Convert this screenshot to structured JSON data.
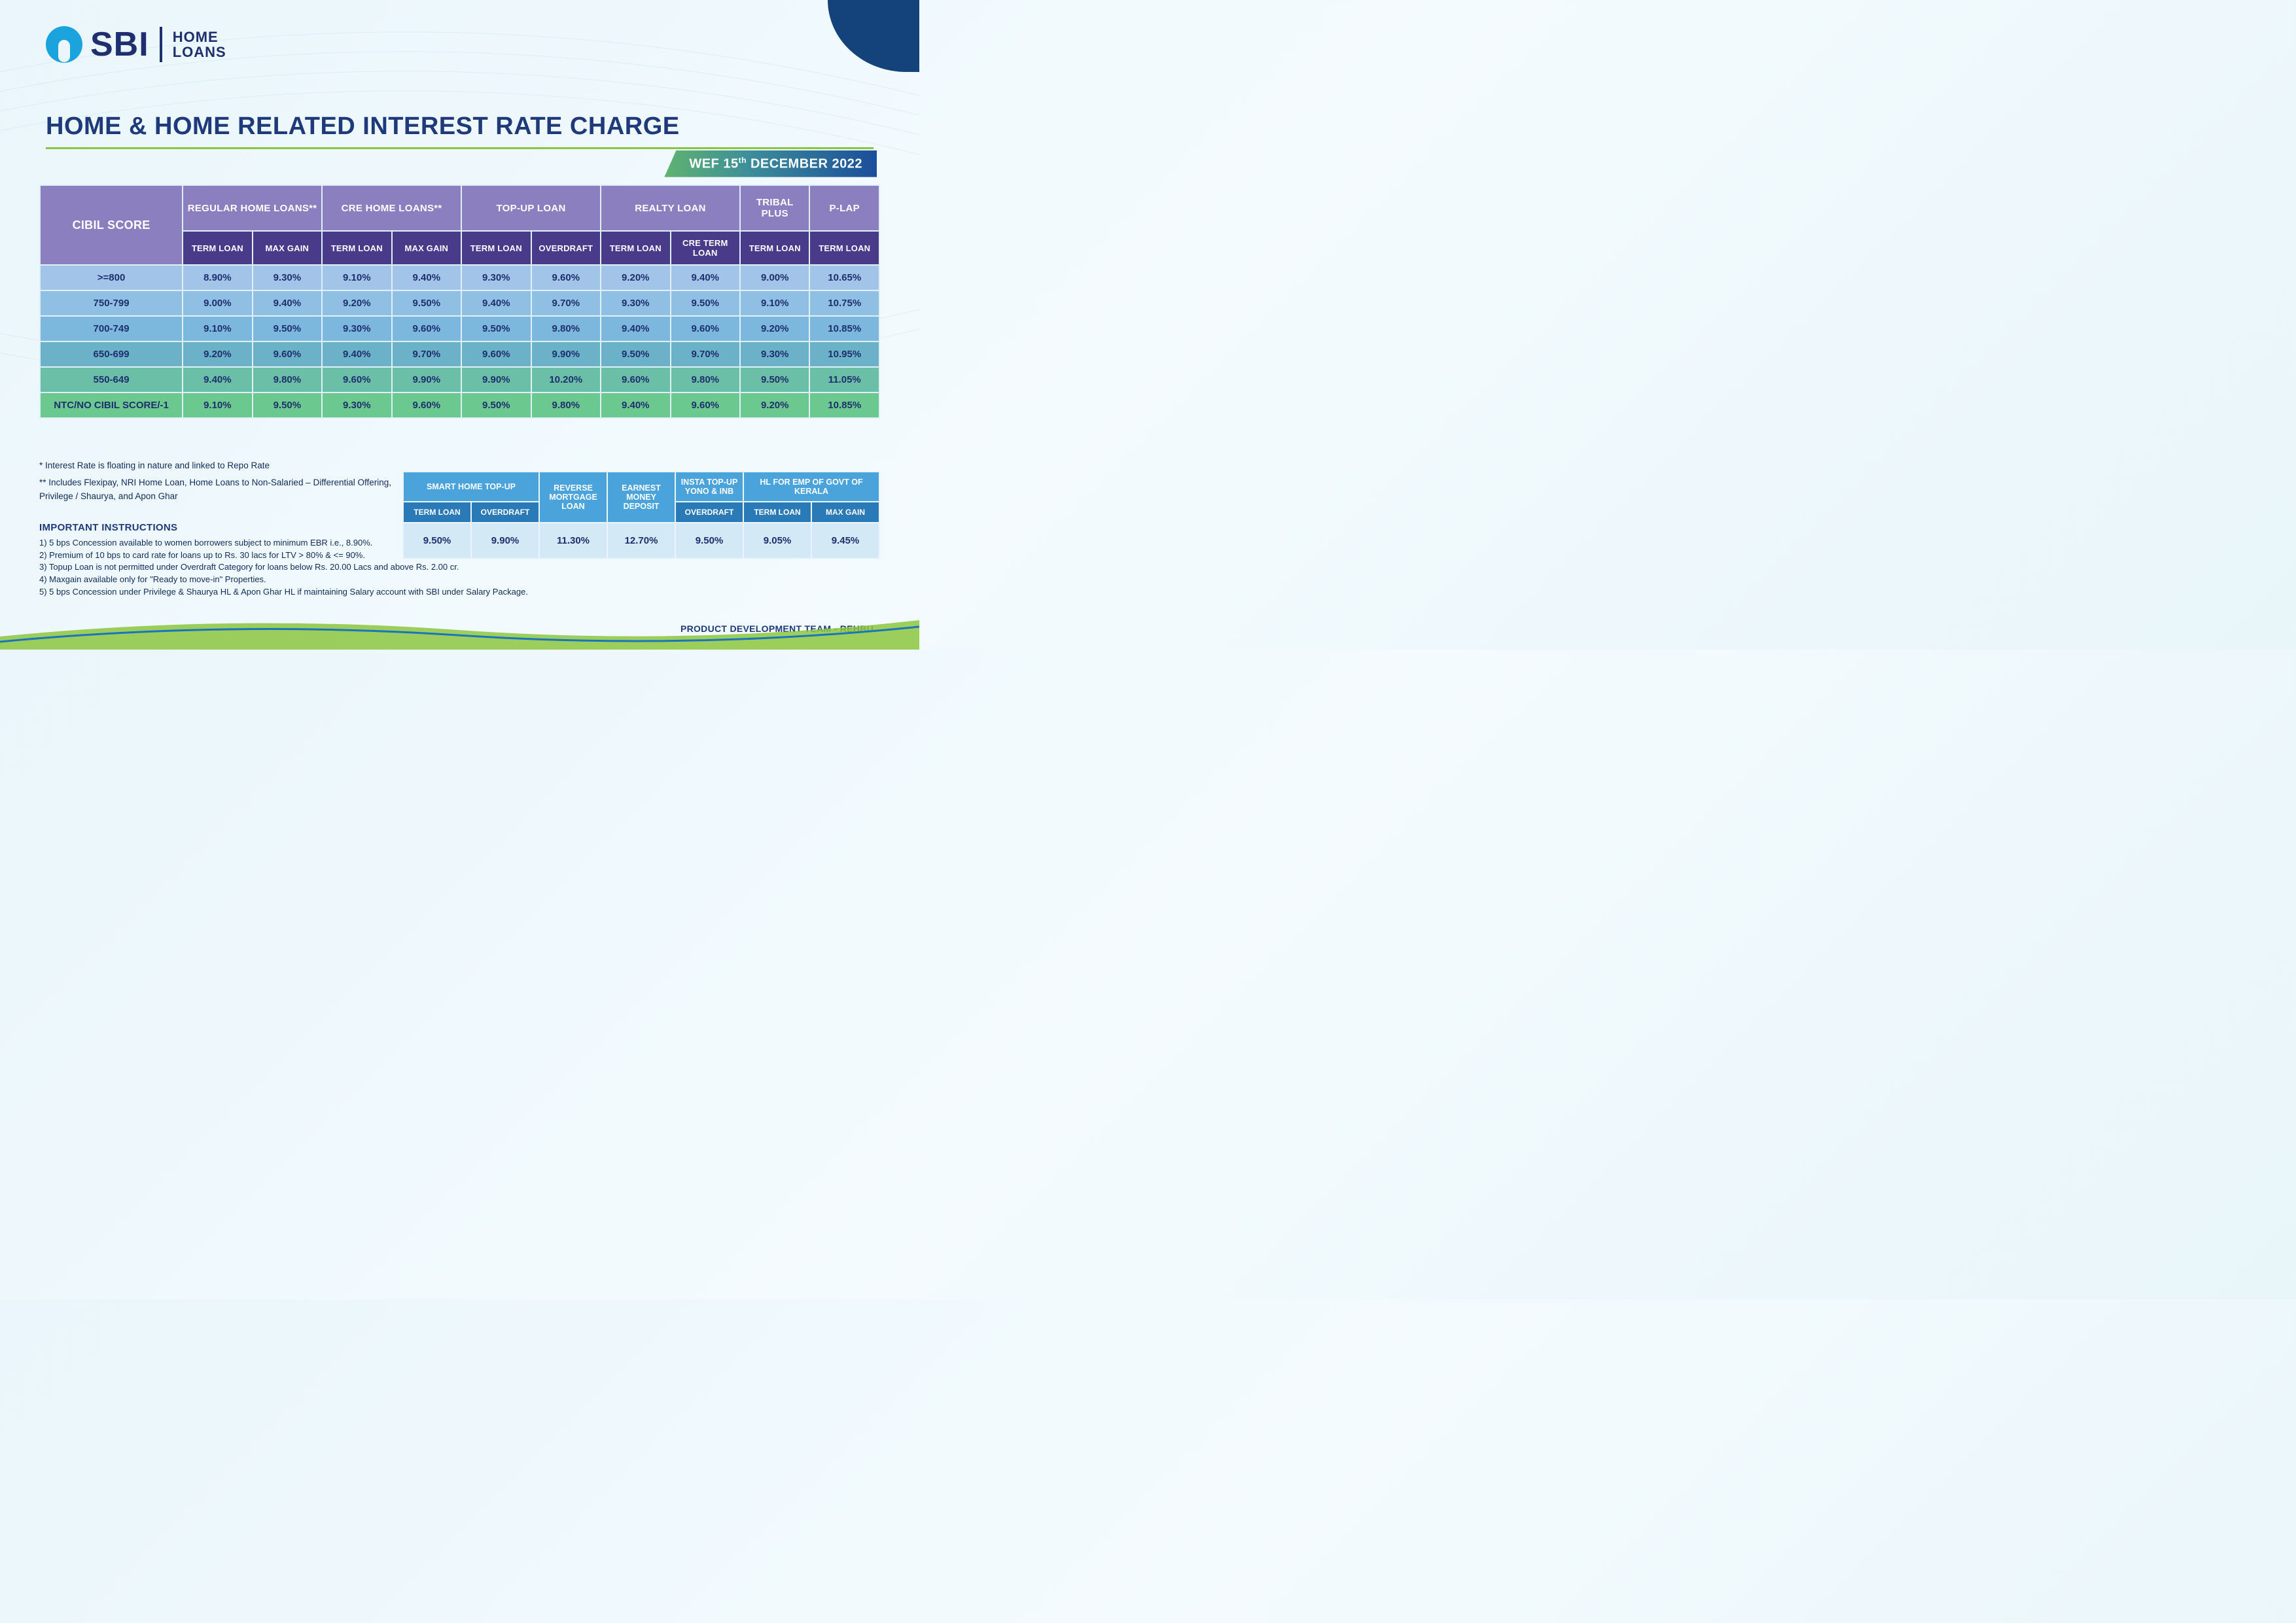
{
  "brand": {
    "name": "SBI",
    "sub1": "HOME",
    "sub2": "LOANS"
  },
  "title": "HOME & HOME RELATED INTEREST RATE CHARGE",
  "wef": {
    "prefix": "WEF 15",
    "suffix": "DECEMBER 2022",
    "ord": "th"
  },
  "colors": {
    "row_bands": [
      "#a2c4e8",
      "#8fbfe3",
      "#7cb8dd",
      "#6bb2c9",
      "#6bbfa6",
      "#6bc98f"
    ]
  },
  "main": {
    "score_header": "CIBIL SCORE",
    "groups": [
      {
        "label": "REGULAR HOME LOANS**",
        "subs": [
          "TERM LOAN",
          "MAX GAIN"
        ]
      },
      {
        "label": "CRE HOME LOANS**",
        "subs": [
          "TERM LOAN",
          "MAX GAIN"
        ]
      },
      {
        "label": "TOP-UP LOAN",
        "subs": [
          "TERM LOAN",
          "OVERDRAFT"
        ]
      },
      {
        "label": "REALTY LOAN",
        "subs": [
          "TERM LOAN",
          "CRE TERM LOAN"
        ]
      },
      {
        "label": "TRIBAL PLUS",
        "subs": [
          "TERM LOAN"
        ]
      },
      {
        "label": "P-LAP",
        "subs": [
          "TERM LOAN"
        ]
      }
    ],
    "rows": [
      {
        "score": ">=800",
        "v": [
          "8.90%",
          "9.30%",
          "9.10%",
          "9.40%",
          "9.30%",
          "9.60%",
          "9.20%",
          "9.40%",
          "9.00%",
          "10.65%"
        ]
      },
      {
        "score": "750-799",
        "v": [
          "9.00%",
          "9.40%",
          "9.20%",
          "9.50%",
          "9.40%",
          "9.70%",
          "9.30%",
          "9.50%",
          "9.10%",
          "10.75%"
        ]
      },
      {
        "score": "700-749",
        "v": [
          "9.10%",
          "9.50%",
          "9.30%",
          "9.60%",
          "9.50%",
          "9.80%",
          "9.40%",
          "9.60%",
          "9.20%",
          "10.85%"
        ]
      },
      {
        "score": "650-699",
        "v": [
          "9.20%",
          "9.60%",
          "9.40%",
          "9.70%",
          "9.60%",
          "9.90%",
          "9.50%",
          "9.70%",
          "9.30%",
          "10.95%"
        ]
      },
      {
        "score": "550-649",
        "v": [
          "9.40%",
          "9.80%",
          "9.60%",
          "9.90%",
          "9.90%",
          "10.20%",
          "9.60%",
          "9.80%",
          "9.50%",
          "11.05%"
        ]
      },
      {
        "score": "NTC/NO CIBIL SCORE/-1",
        "v": [
          "9.10%",
          "9.50%",
          "9.30%",
          "9.60%",
          "9.50%",
          "9.80%",
          "9.40%",
          "9.60%",
          "9.20%",
          "10.85%"
        ]
      }
    ]
  },
  "footnotes": {
    "f1": "* Interest Rate is floating in nature and linked to Repo Rate",
    "f2": "** Includes Flexipay, NRI Home Loan, Home Loans to Non-Salaried – Differential Offering, Privilege / Shaurya, and Apon Ghar"
  },
  "instructions": {
    "title": "IMPORTANT INSTRUCTIONS",
    "items": [
      "1) 5 bps Concession available to women borrowers subject to minimum EBR i.e., 8.90%.",
      "2) Premium of 10 bps to card rate for loans up to Rs. 30 lacs for LTV > 80% & <= 90%.",
      "3) Topup Loan is not permitted under Overdraft Category for loans below Rs. 20.00 Lacs and above Rs. 2.00 cr.",
      "4) Maxgain available only for \"Ready to move-in\" Properties.",
      "5) 5 bps Concession under Privilege & Shaurya HL & Apon Ghar HL if maintaining Salary account with SBI under Salary Package."
    ]
  },
  "secondary": {
    "groups": [
      {
        "label": "SMART HOME TOP-UP",
        "subs": [
          "TERM LOAN",
          "OVERDRAFT"
        ]
      },
      {
        "label": "REVERSE MORTGAGE LOAN",
        "subs": [
          ""
        ]
      },
      {
        "label": "EARNEST MONEY DEPOSIT",
        "subs": [
          ""
        ]
      },
      {
        "label": "INSTA TOP-UP YONO & INB",
        "subs": [
          "OVERDRAFT"
        ]
      },
      {
        "label": "HL FOR EMP OF GOVT OF KERALA",
        "subs": [
          "TERM LOAN",
          "MAX GAIN"
        ]
      }
    ],
    "values": [
      "9.50%",
      "9.90%",
      "11.30%",
      "12.70%",
      "9.50%",
      "9.05%",
      "9.45%"
    ]
  },
  "footer": "PRODUCT DEVELOPMENT TEAM - REHBU"
}
